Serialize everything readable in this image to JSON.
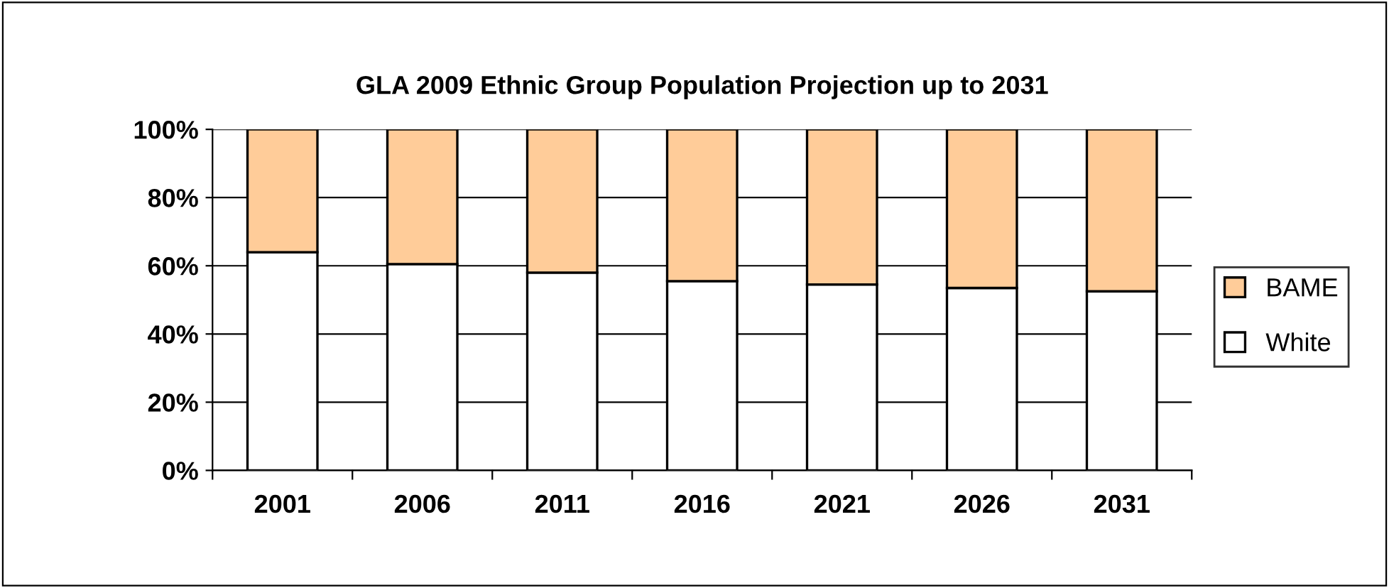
{
  "chart_data": {
    "type": "bar",
    "title": "GLA 2009 Ethnic Group Population Projection up to 2031",
    "categories": [
      "2001",
      "2006",
      "2011",
      "2016",
      "2021",
      "2026",
      "2031"
    ],
    "stacked": true,
    "series": [
      {
        "name": "White",
        "color": "#ffffff",
        "values": [
          64,
          60.5,
          58,
          55.5,
          54.5,
          53.5,
          52.5
        ]
      },
      {
        "name": "BAME",
        "color": "#ffcc99",
        "values": [
          36,
          39.5,
          42,
          44.5,
          45.5,
          46.5,
          47.5
        ]
      }
    ],
    "ylim": [
      0,
      100
    ],
    "yticks": [
      {
        "value": 0,
        "label": "0%"
      },
      {
        "value": 20,
        "label": "20%"
      },
      {
        "value": 40,
        "label": "40%"
      },
      {
        "value": 60,
        "label": "60%"
      },
      {
        "value": 80,
        "label": "80%"
      },
      {
        "value": 100,
        "label": "100%"
      }
    ],
    "grid": "y",
    "legend": "right"
  }
}
